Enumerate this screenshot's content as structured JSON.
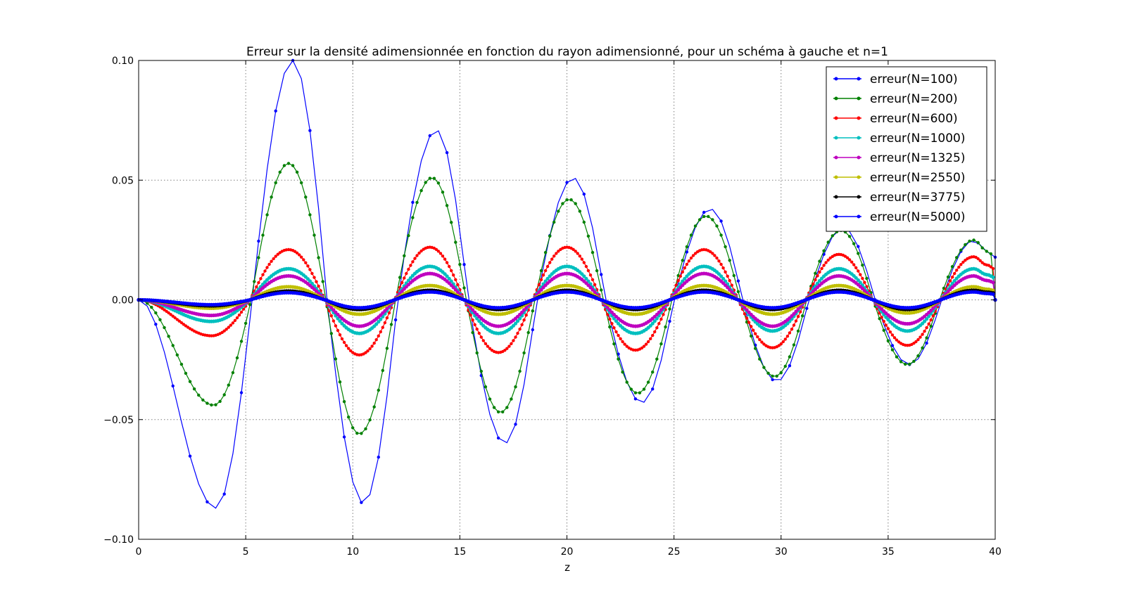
{
  "chart_data": {
    "type": "line",
    "title": "Erreur sur la densité adimensionnée en fonction du rayon adimensionné, pour un schéma à gauche et n=1",
    "xlabel": "z",
    "ylabel": "",
    "xlim": [
      0,
      40
    ],
    "ylim": [
      -0.1,
      0.1
    ],
    "x_ticks": [
      "0",
      "5",
      "10",
      "15",
      "20",
      "25",
      "30",
      "35",
      "40"
    ],
    "y_ticks": [
      "0.10",
      "0.05",
      "0.00",
      "−0.05",
      "−0.10"
    ],
    "grid": true,
    "legend_position": "top-right",
    "series": [
      {
        "name": "erreur(N=100)",
        "color": "#0000ff",
        "extrema": [
          [
            0,
            0
          ],
          [
            3.6,
            -0.087
          ],
          [
            7.2,
            0.1
          ],
          [
            10.5,
            -0.085
          ],
          [
            13.9,
            0.071
          ],
          [
            17.1,
            -0.06
          ],
          [
            20.3,
            0.051
          ],
          [
            23.5,
            -0.043
          ],
          [
            26.7,
            0.038
          ],
          [
            29.8,
            -0.034
          ],
          [
            32.9,
            0.03
          ],
          [
            36.0,
            -0.027
          ],
          [
            39.0,
            0.025
          ]
        ],
        "zeros": [
          1.0,
          5.3,
          8.8,
          12.1,
          15.4,
          18.6,
          21.8,
          25.0,
          28.2,
          31.3,
          34.4,
          37.5
        ]
      },
      {
        "name": "erreur(N=200)",
        "color": "#008000",
        "extrema": [
          [
            0,
            0
          ],
          [
            3.5,
            -0.044
          ],
          [
            7.0,
            0.057
          ],
          [
            10.3,
            -0.056
          ],
          [
            13.7,
            0.051
          ],
          [
            16.9,
            -0.047
          ],
          [
            20.1,
            0.042
          ],
          [
            23.3,
            -0.039
          ],
          [
            26.5,
            0.035
          ],
          [
            29.7,
            -0.032
          ],
          [
            32.8,
            0.029
          ],
          [
            35.9,
            -0.027
          ],
          [
            39.0,
            0.025
          ]
        ],
        "zeros": [
          1.0,
          5.25,
          8.75,
          12.0,
          15.3,
          18.5,
          21.7,
          24.9,
          28.1,
          31.2,
          34.3,
          37.4
        ]
      },
      {
        "name": "erreur(N=600)",
        "color": "#ff0000",
        "extrema": [
          [
            0,
            0
          ],
          [
            3.4,
            -0.015
          ],
          [
            7.0,
            0.021
          ],
          [
            10.3,
            -0.023
          ],
          [
            13.6,
            0.022
          ],
          [
            16.8,
            -0.022
          ],
          [
            20.0,
            0.022
          ],
          [
            23.2,
            -0.021
          ],
          [
            26.4,
            0.021
          ],
          [
            29.6,
            -0.02
          ],
          [
            32.7,
            0.019
          ],
          [
            35.9,
            -0.019
          ],
          [
            39.0,
            0.018
          ]
        ],
        "zeros": [
          1.0,
          5.2,
          8.7,
          11.95,
          15.2,
          18.4,
          21.6,
          24.8,
          28.0,
          31.15,
          34.3,
          37.45
        ]
      },
      {
        "name": "erreur(N=1000)",
        "color": "#00bfbf",
        "extrema": [
          [
            0,
            0
          ],
          [
            3.4,
            -0.009
          ],
          [
            7.0,
            0.013
          ],
          [
            10.3,
            -0.014
          ],
          [
            13.6,
            0.014
          ],
          [
            16.8,
            -0.014
          ],
          [
            20.0,
            0.014
          ],
          [
            23.2,
            -0.014
          ],
          [
            26.4,
            0.014
          ],
          [
            29.6,
            -0.013
          ],
          [
            32.7,
            0.013
          ],
          [
            35.9,
            -0.013
          ],
          [
            39.0,
            0.013
          ]
        ],
        "zeros": [
          1.0,
          5.2,
          8.7,
          11.95,
          15.2,
          18.4,
          21.6,
          24.8,
          28.0,
          31.15,
          34.3,
          37.45
        ]
      },
      {
        "name": "erreur(N=1325)",
        "color": "#bf00bf",
        "extrema": [
          [
            0,
            0
          ],
          [
            3.4,
            -0.0065
          ],
          [
            7.0,
            0.01
          ],
          [
            10.3,
            -0.011
          ],
          [
            13.6,
            0.011
          ],
          [
            16.8,
            -0.011
          ],
          [
            20.0,
            0.011
          ],
          [
            23.2,
            -0.011
          ],
          [
            26.4,
            0.011
          ],
          [
            29.6,
            -0.011
          ],
          [
            32.7,
            0.01
          ],
          [
            35.9,
            -0.01
          ],
          [
            39.0,
            0.01
          ]
        ],
        "zeros": [
          1.0,
          5.2,
          8.7,
          11.95,
          15.2,
          18.4,
          21.6,
          24.8,
          28.0,
          31.15,
          34.3,
          37.45
        ]
      },
      {
        "name": "erreur(N=2550)",
        "color": "#bfbf00",
        "extrema": [
          [
            0,
            0
          ],
          [
            3.4,
            -0.0035
          ],
          [
            7.0,
            0.0055
          ],
          [
            10.3,
            -0.006
          ],
          [
            13.6,
            0.006
          ],
          [
            16.8,
            -0.006
          ],
          [
            20.0,
            0.006
          ],
          [
            23.2,
            -0.006
          ],
          [
            26.4,
            0.006
          ],
          [
            29.6,
            -0.006
          ],
          [
            32.7,
            0.006
          ],
          [
            35.9,
            -0.0055
          ],
          [
            39.0,
            0.0055
          ]
        ],
        "zeros": [
          1.0,
          5.2,
          8.7,
          11.95,
          15.2,
          18.4,
          21.6,
          24.8,
          28.0,
          31.15,
          34.3,
          37.45
        ]
      },
      {
        "name": "erreur(N=3775)",
        "color": "#000000",
        "extrema": [
          [
            0,
            0
          ],
          [
            3.4,
            -0.0025
          ],
          [
            7.0,
            0.0037
          ],
          [
            10.3,
            -0.004
          ],
          [
            13.6,
            0.004
          ],
          [
            16.8,
            -0.004
          ],
          [
            20.0,
            0.004
          ],
          [
            23.2,
            -0.004
          ],
          [
            26.4,
            0.004
          ],
          [
            29.6,
            -0.004
          ],
          [
            32.7,
            0.004
          ],
          [
            35.9,
            -0.004
          ],
          [
            39.0,
            0.004
          ]
        ],
        "zeros": [
          1.0,
          5.2,
          8.7,
          11.95,
          15.2,
          18.4,
          21.6,
          24.8,
          28.0,
          31.15,
          34.3,
          37.45
        ]
      },
      {
        "name": "erreur(N=5000)",
        "color": "#0000ff",
        "extrema": [
          [
            0,
            0
          ],
          [
            3.4,
            -0.002
          ],
          [
            7.0,
            0.003
          ],
          [
            10.3,
            -0.0033
          ],
          [
            13.6,
            0.0033
          ],
          [
            16.8,
            -0.0033
          ],
          [
            20.0,
            0.0033
          ],
          [
            23.2,
            -0.0033
          ],
          [
            26.4,
            0.0033
          ],
          [
            29.6,
            -0.0033
          ],
          [
            32.7,
            0.0033
          ],
          [
            35.9,
            -0.0033
          ],
          [
            39.0,
            0.0033
          ]
        ],
        "zeros": [
          1.0,
          5.2,
          8.7,
          11.95,
          15.2,
          18.4,
          21.6,
          24.8,
          28.0,
          31.15,
          34.3,
          37.45
        ]
      }
    ]
  }
}
